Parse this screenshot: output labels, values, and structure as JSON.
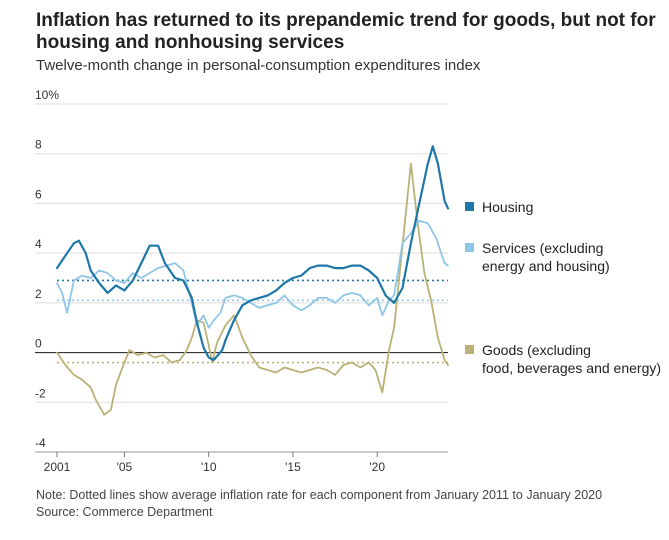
{
  "title": "Inflation has returned to its prepandemic trend for goods, but not for housing and nonhousing services",
  "subtitle": "Twelve-month change in personal-consumption expenditures index",
  "note": "Note: Dotted lines show average inflation rate for each component from January 2011 to January 2020",
  "source": "Source: Commerce Department",
  "colors": {
    "housing": "#1f77a8",
    "services": "#8fc6e6",
    "goods": "#b9b176",
    "zero_line": "#333333",
    "grid": "#dddddd"
  },
  "chart_data": {
    "type": "line",
    "ylim": [
      -4,
      10
    ],
    "xlim": [
      2001,
      2024.2
    ],
    "y_ticks": [
      {
        "value": 10,
        "label": "10%"
      },
      {
        "value": 8,
        "label": "8"
      },
      {
        "value": 6,
        "label": "6"
      },
      {
        "value": 4,
        "label": "4"
      },
      {
        "value": 2,
        "label": "2"
      },
      {
        "value": 0,
        "label": "0"
      },
      {
        "value": -2,
        "label": "-2"
      },
      {
        "value": -4,
        "label": "-4"
      }
    ],
    "x_ticks": [
      {
        "value": 2001,
        "label": "2001"
      },
      {
        "value": 2005,
        "label": "'05"
      },
      {
        "value": 2010,
        "label": "'10"
      },
      {
        "value": 2015,
        "label": "'15"
      },
      {
        "value": 2020,
        "label": "'20"
      }
    ],
    "grid": true,
    "legend_position": "right",
    "series": [
      {
        "key": "housing",
        "name": "Housing",
        "average_2011_2020": 2.9,
        "points": [
          [
            2001.0,
            3.4
          ],
          [
            2001.5,
            3.9
          ],
          [
            2002.0,
            4.4
          ],
          [
            2002.3,
            4.5
          ],
          [
            2002.7,
            4.0
          ],
          [
            2003.0,
            3.3
          ],
          [
            2003.5,
            2.8
          ],
          [
            2004.0,
            2.4
          ],
          [
            2004.5,
            2.7
          ],
          [
            2005.0,
            2.5
          ],
          [
            2005.5,
            2.9
          ],
          [
            2006.0,
            3.6
          ],
          [
            2006.5,
            4.3
          ],
          [
            2007.0,
            4.3
          ],
          [
            2007.4,
            3.6
          ],
          [
            2008.0,
            3.0
          ],
          [
            2008.5,
            2.9
          ],
          [
            2009.0,
            2.2
          ],
          [
            2009.3,
            1.2
          ],
          [
            2009.7,
            0.2
          ],
          [
            2010.0,
            -0.2
          ],
          [
            2010.3,
            -0.3
          ],
          [
            2010.8,
            0.1
          ],
          [
            2011.0,
            0.5
          ],
          [
            2011.5,
            1.3
          ],
          [
            2012.0,
            1.9
          ],
          [
            2012.5,
            2.1
          ],
          [
            2013.0,
            2.2
          ],
          [
            2013.5,
            2.3
          ],
          [
            2014.0,
            2.5
          ],
          [
            2014.5,
            2.8
          ],
          [
            2015.0,
            3.0
          ],
          [
            2015.5,
            3.1
          ],
          [
            2016.0,
            3.4
          ],
          [
            2016.5,
            3.5
          ],
          [
            2017.0,
            3.5
          ],
          [
            2017.5,
            3.4
          ],
          [
            2018.0,
            3.4
          ],
          [
            2018.5,
            3.5
          ],
          [
            2019.0,
            3.5
          ],
          [
            2019.5,
            3.3
          ],
          [
            2020.0,
            3.0
          ],
          [
            2020.5,
            2.3
          ],
          [
            2021.0,
            2.0
          ],
          [
            2021.5,
            2.6
          ],
          [
            2022.0,
            4.4
          ],
          [
            2022.5,
            6.0
          ],
          [
            2023.0,
            7.6
          ],
          [
            2023.3,
            8.3
          ],
          [
            2023.6,
            7.6
          ],
          [
            2024.0,
            6.1
          ],
          [
            2024.2,
            5.8
          ]
        ]
      },
      {
        "key": "services",
        "name": "Services (excluding energy and housing)",
        "average_2011_2020": 2.1,
        "points": [
          [
            2001.0,
            2.8
          ],
          [
            2001.3,
            2.4
          ],
          [
            2001.6,
            1.6
          ],
          [
            2002.0,
            2.9
          ],
          [
            2002.5,
            3.1
          ],
          [
            2003.0,
            3.0
          ],
          [
            2003.5,
            3.3
          ],
          [
            2004.0,
            3.2
          ],
          [
            2004.5,
            2.9
          ],
          [
            2005.0,
            2.8
          ],
          [
            2005.5,
            3.2
          ],
          [
            2006.0,
            3.0
          ],
          [
            2006.5,
            3.2
          ],
          [
            2007.0,
            3.4
          ],
          [
            2007.5,
            3.5
          ],
          [
            2008.0,
            3.6
          ],
          [
            2008.5,
            3.3
          ],
          [
            2009.0,
            2.0
          ],
          [
            2009.3,
            1.1
          ],
          [
            2009.7,
            1.5
          ],
          [
            2010.0,
            1.0
          ],
          [
            2010.3,
            1.3
          ],
          [
            2010.7,
            1.6
          ],
          [
            2011.0,
            2.2
          ],
          [
            2011.5,
            2.3
          ],
          [
            2012.0,
            2.2
          ],
          [
            2012.5,
            2.0
          ],
          [
            2013.0,
            1.8
          ],
          [
            2013.5,
            1.9
          ],
          [
            2014.0,
            2.0
          ],
          [
            2014.5,
            2.3
          ],
          [
            2015.0,
            1.9
          ],
          [
            2015.5,
            1.7
          ],
          [
            2016.0,
            1.9
          ],
          [
            2016.5,
            2.2
          ],
          [
            2017.0,
            2.2
          ],
          [
            2017.5,
            2.0
          ],
          [
            2018.0,
            2.3
          ],
          [
            2018.5,
            2.4
          ],
          [
            2019.0,
            2.3
          ],
          [
            2019.5,
            1.9
          ],
          [
            2020.0,
            2.2
          ],
          [
            2020.3,
            1.5
          ],
          [
            2020.7,
            2.1
          ],
          [
            2021.0,
            2.3
          ],
          [
            2021.5,
            4.4
          ],
          [
            2022.0,
            4.8
          ],
          [
            2022.5,
            5.3
          ],
          [
            2023.0,
            5.2
          ],
          [
            2023.5,
            4.6
          ],
          [
            2024.0,
            3.6
          ],
          [
            2024.2,
            3.5
          ]
        ]
      },
      {
        "key": "goods",
        "name": "Goods (excluding food, beverages and energy)",
        "average_2011_2020": -0.4,
        "points": [
          [
            2001.0,
            0.0
          ],
          [
            2001.5,
            -0.5
          ],
          [
            2002.0,
            -0.9
          ],
          [
            2002.5,
            -1.1
          ],
          [
            2003.0,
            -1.4
          ],
          [
            2003.3,
            -1.9
          ],
          [
            2003.8,
            -2.5
          ],
          [
            2004.2,
            -2.3
          ],
          [
            2004.5,
            -1.3
          ],
          [
            2005.0,
            -0.4
          ],
          [
            2005.3,
            0.1
          ],
          [
            2005.8,
            -0.1
          ],
          [
            2006.3,
            0.0
          ],
          [
            2006.8,
            -0.2
          ],
          [
            2007.3,
            -0.1
          ],
          [
            2007.8,
            -0.4
          ],
          [
            2008.3,
            -0.3
          ],
          [
            2008.7,
            0.1
          ],
          [
            2009.0,
            0.6
          ],
          [
            2009.3,
            1.3
          ],
          [
            2009.7,
            1.2
          ],
          [
            2010.0,
            0.3
          ],
          [
            2010.2,
            -0.4
          ],
          [
            2010.5,
            0.4
          ],
          [
            2011.0,
            1.1
          ],
          [
            2011.5,
            1.5
          ],
          [
            2012.0,
            0.6
          ],
          [
            2012.5,
            -0.1
          ],
          [
            2013.0,
            -0.6
          ],
          [
            2013.5,
            -0.7
          ],
          [
            2014.0,
            -0.8
          ],
          [
            2014.5,
            -0.6
          ],
          [
            2015.0,
            -0.7
          ],
          [
            2015.5,
            -0.8
          ],
          [
            2016.0,
            -0.7
          ],
          [
            2016.5,
            -0.6
          ],
          [
            2017.0,
            -0.7
          ],
          [
            2017.5,
            -0.9
          ],
          [
            2018.0,
            -0.5
          ],
          [
            2018.5,
            -0.4
          ],
          [
            2019.0,
            -0.6
          ],
          [
            2019.5,
            -0.4
          ],
          [
            2019.9,
            -0.7
          ],
          [
            2020.3,
            -1.6
          ],
          [
            2020.7,
            0.1
          ],
          [
            2021.0,
            1.0
          ],
          [
            2021.5,
            4.3
          ],
          [
            2022.0,
            7.6
          ],
          [
            2022.4,
            5.2
          ],
          [
            2022.8,
            3.2
          ],
          [
            2023.2,
            2.1
          ],
          [
            2023.6,
            0.6
          ],
          [
            2024.0,
            -0.3
          ],
          [
            2024.2,
            -0.5
          ]
        ]
      }
    ]
  }
}
